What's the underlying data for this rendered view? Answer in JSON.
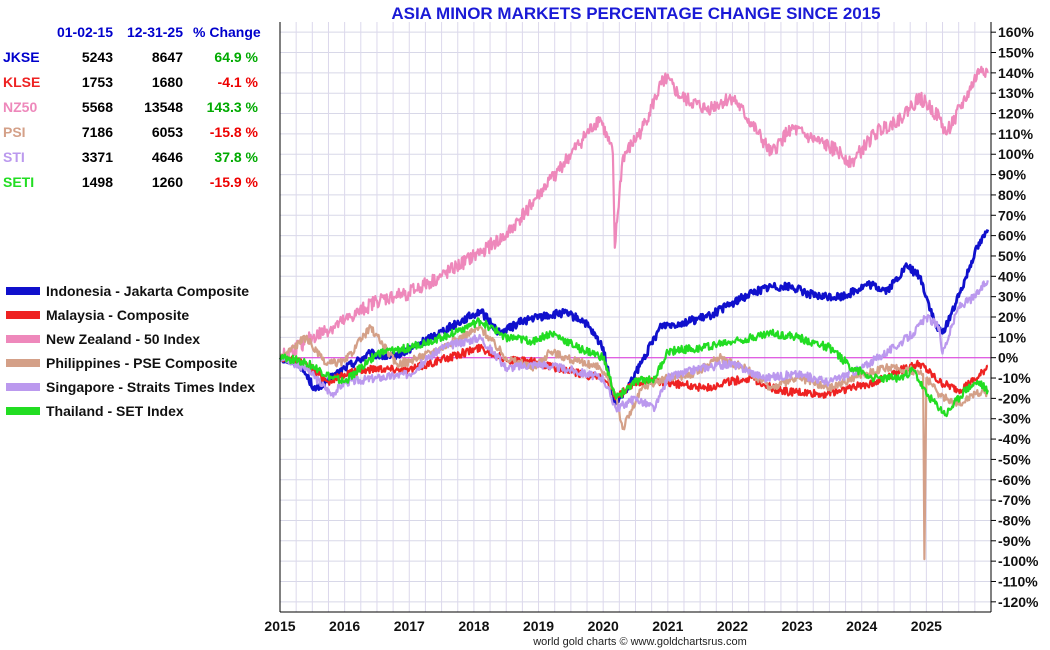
{
  "chart_data": {
    "type": "line",
    "title": "ASIA MINOR MARKETS PERCENTAGE CHANGE SINCE 2015",
    "xlabel": "",
    "ylabel": "",
    "xlim": [
      2015,
      2026
    ],
    "ylim": [
      -125,
      165
    ],
    "x_ticks": [
      "2015",
      "2016",
      "2017",
      "2018",
      "2019",
      "2020",
      "2021",
      "2022",
      "2023",
      "2024",
      "2025"
    ],
    "y_ticks": [
      -120,
      -110,
      -100,
      -90,
      -80,
      -70,
      -60,
      -50,
      -40,
      -30,
      -20,
      -10,
      0,
      10,
      20,
      30,
      40,
      50,
      60,
      70,
      80,
      90,
      100,
      110,
      120,
      130,
      140,
      150,
      160
    ],
    "y_tick_suffix": "%",
    "zero_line_color": "#dd33dd",
    "grid": true,
    "legend_position": "left",
    "series": [
      {
        "name": "Indonesia - Jakarta Composite",
        "color": "#1010cc",
        "x": [
          2015,
          2015.3,
          2015.55,
          2015.75,
          2016,
          2016.4,
          2016.7,
          2017,
          2017.5,
          2018.1,
          2018.4,
          2018.75,
          2019,
          2019.4,
          2019.7,
          2020,
          2020.17,
          2020.35,
          2020.6,
          2020.9,
          2021.2,
          2021.6,
          2021.9,
          2022.3,
          2022.6,
          2022.9,
          2023.3,
          2023.7,
          2024.1,
          2024.4,
          2024.7,
          2024.9,
          2025.15,
          2025.25,
          2025.5,
          2025.75,
          2025.95
        ],
        "y": [
          0,
          -3,
          -16,
          -11,
          -5,
          2,
          0,
          4,
          13,
          23,
          12,
          18,
          20,
          22,
          18,
          5,
          -22,
          -17,
          -2,
          16,
          17,
          20,
          25,
          32,
          35,
          35,
          30,
          30,
          36,
          33,
          45,
          40,
          15,
          12,
          30,
          52,
          63
        ]
      },
      {
        "name": "Malaysia - Composite",
        "color": "#ee2222",
        "x": [
          2015,
          2015.4,
          2015.75,
          2016,
          2016.5,
          2017,
          2017.5,
          2018.1,
          2018.5,
          2018.9,
          2019.4,
          2019.8,
          2020,
          2020.2,
          2020.5,
          2020.8,
          2021.2,
          2021.6,
          2021.9,
          2022.3,
          2022.7,
          2023,
          2023.4,
          2023.8,
          2024.2,
          2024.6,
          2024.9,
          2025.2,
          2025.5,
          2025.8,
          2025.95
        ],
        "y": [
          0,
          -3,
          -12,
          -8,
          -5,
          -6,
          -1,
          5,
          -1,
          -2,
          -6,
          -9,
          -10,
          -20,
          -12,
          -12,
          -13,
          -15,
          -12,
          -10,
          -16,
          -17,
          -18,
          -15,
          -12,
          -6,
          -3,
          -12,
          -16,
          -10,
          -4
        ]
      },
      {
        "name": "New Zealand - 50 Index",
        "color": "#ee88bb",
        "x": [
          2015,
          2015.5,
          2016,
          2016.5,
          2017,
          2017.5,
          2018,
          2018.5,
          2019,
          2019.5,
          2019.95,
          2020.15,
          2020.18,
          2020.3,
          2020.6,
          2020.95,
          2021.2,
          2021.6,
          2022,
          2022.4,
          2022.6,
          2022.9,
          2023.2,
          2023.6,
          2023.85,
          2024.2,
          2024.6,
          2024.9,
          2025.2,
          2025.3,
          2025.6,
          2025.85,
          2025.95
        ],
        "y": [
          0,
          10,
          18,
          28,
          32,
          40,
          50,
          60,
          80,
          100,
          118,
          100,
          54,
          98,
          112,
          138,
          128,
          122,
          128,
          110,
          100,
          113,
          108,
          102,
          96,
          110,
          118,
          128,
          118,
          110,
          127,
          143,
          140
        ]
      },
      {
        "name": "Philippines - PSE Composite",
        "color": "#d4a088",
        "x": [
          2015,
          2015.4,
          2015.7,
          2016,
          2016.4,
          2016.8,
          2017,
          2017.5,
          2018.1,
          2018.5,
          2018.9,
          2019.2,
          2019.6,
          2019.95,
          2020.2,
          2020.3,
          2020.6,
          2021,
          2021.4,
          2021.8,
          2022.2,
          2022.6,
          2023,
          2023.5,
          2024,
          2024.4,
          2024.75,
          2024.95,
          2024.97,
          2025,
          2025.2,
          2025.5,
          2025.75,
          2025.95
        ],
        "y": [
          0,
          10,
          -3,
          -2,
          15,
          -3,
          -2,
          5,
          15,
          0,
          -5,
          3,
          -2,
          -5,
          -18,
          -35,
          -15,
          -10,
          -8,
          0,
          -5,
          -15,
          -10,
          -15,
          -8,
          -5,
          -6,
          -8,
          -99,
          -10,
          -18,
          -23,
          -17,
          -17
        ]
      },
      {
        "name": "Singapore - Straits Times Index",
        "color": "#bb99ee",
        "x": [
          2015,
          2015.4,
          2015.8,
          2016,
          2016.5,
          2017,
          2017.5,
          2018.1,
          2018.5,
          2019,
          2019.5,
          2020,
          2020.2,
          2020.5,
          2020.8,
          2021,
          2021.5,
          2022,
          2022.5,
          2023,
          2023.5,
          2024,
          2024.5,
          2024.8,
          2025,
          2025.2,
          2025.25,
          2025.5,
          2025.75,
          2025.95
        ],
        "y": [
          0,
          -5,
          -18,
          -12,
          -10,
          -8,
          5,
          10,
          -5,
          -3,
          -6,
          -10,
          -25,
          -20,
          -25,
          -10,
          -5,
          -3,
          -10,
          -8,
          -12,
          -5,
          5,
          12,
          20,
          15,
          2,
          25,
          30,
          38
        ]
      },
      {
        "name": "Thailand - SET Index",
        "color": "#22dd22",
        "x": [
          2015,
          2015.4,
          2015.8,
          2016,
          2016.5,
          2017,
          2017.5,
          2018.1,
          2018.5,
          2018.9,
          2019.2,
          2019.6,
          2020,
          2020.2,
          2020.5,
          2020.8,
          2021,
          2021.5,
          2022,
          2022.6,
          2023,
          2023.5,
          2023.85,
          2024.2,
          2024.6,
          2024.8,
          2025,
          2025.3,
          2025.6,
          2025.8,
          2025.95
        ],
        "y": [
          0,
          -2,
          -10,
          -12,
          2,
          5,
          10,
          18,
          10,
          8,
          12,
          5,
          0,
          -20,
          -12,
          -10,
          3,
          5,
          8,
          12,
          10,
          5,
          -5,
          -10,
          -10,
          -6,
          -18,
          -28,
          -16,
          -12,
          -16
        ]
      }
    ]
  },
  "table": {
    "headers": [
      "",
      "01-02-15",
      "12-31-25",
      "% Change"
    ],
    "rows": [
      {
        "symbol": "JKSE",
        "start": "5243",
        "end": "8647",
        "change": "64.9 %",
        "symbol_color": "#0000cc",
        "change_color": "#00aa00"
      },
      {
        "symbol": "KLSE",
        "start": "1753",
        "end": "1680",
        "change": "-4.1 %",
        "symbol_color": "#ee2222",
        "change_color": "#ee0000"
      },
      {
        "symbol": "NZ50",
        "start": "5568",
        "end": "13548",
        "change": "143.3 %",
        "symbol_color": "#ee88bb",
        "change_color": "#00aa00"
      },
      {
        "symbol": "PSI",
        "start": "7186",
        "end": "6053",
        "change": "-15.8 %",
        "symbol_color": "#d4a088",
        "change_color": "#ee0000"
      },
      {
        "symbol": "STI",
        "start": "3371",
        "end": "4646",
        "change": "37.8 %",
        "symbol_color": "#bb99ee",
        "change_color": "#00aa00"
      },
      {
        "symbol": "SETI",
        "start": "1498",
        "end": "1260",
        "change": "-15.9 %",
        "symbol_color": "#22dd22",
        "change_color": "#ee0000"
      }
    ]
  },
  "credit": "world gold charts © www.goldchartsrus.com"
}
